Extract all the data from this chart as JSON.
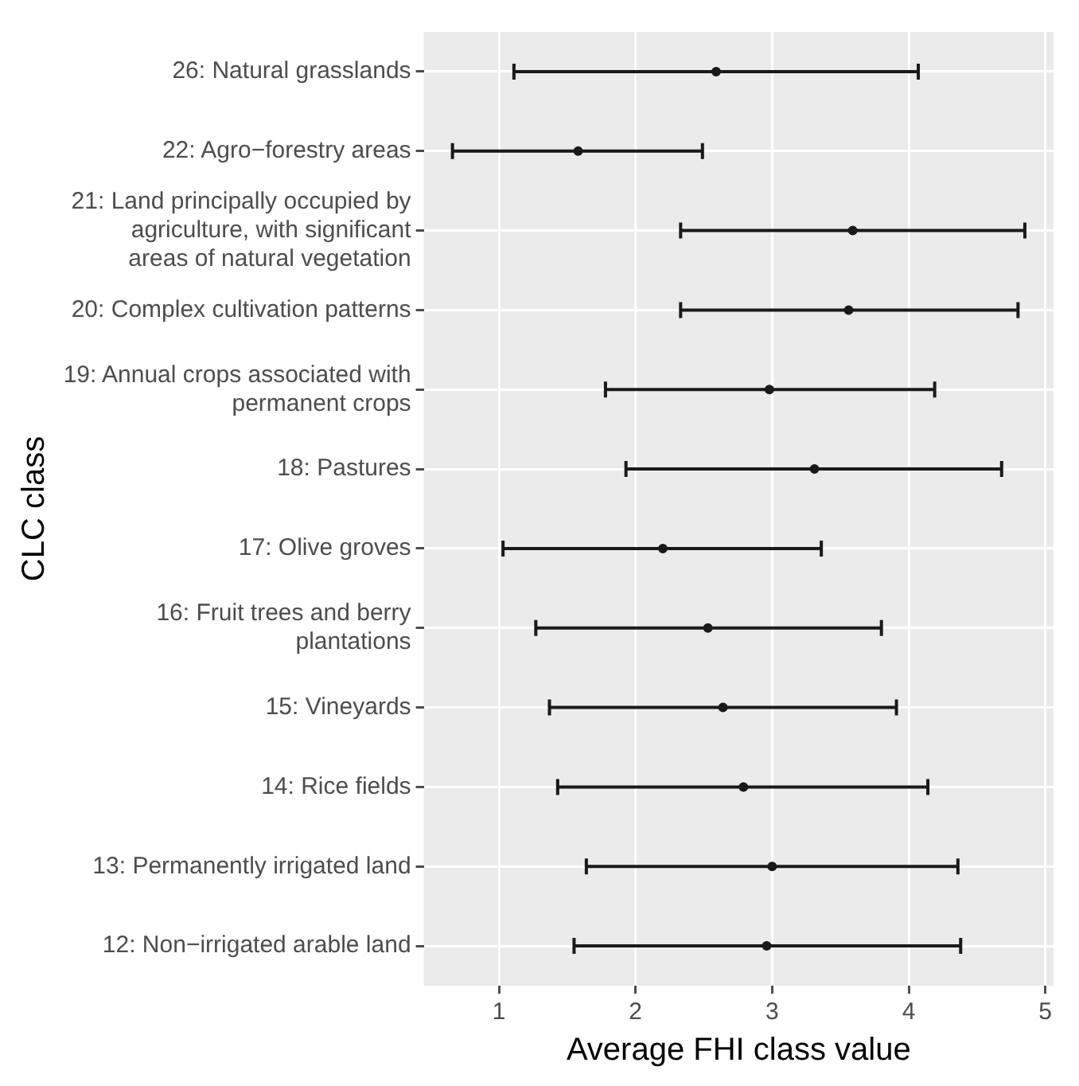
{
  "chart_data": {
    "type": "scatter",
    "orientation": "horizontal",
    "xlabel": "Average FHI class value",
    "ylabel": "CLC class",
    "categories": [
      "26: Natural grasslands",
      "22: Agro−forestry areas",
      "21: Land principally occupied by agriculture, with significant areas of natural vegetation",
      "20: Complex cultivation patterns",
      "19: Annual crops associated with permanent crops",
      "18: Pastures",
      "17: Olive groves",
      "16: Fruit trees and berry plantations",
      "15: Vineyards",
      "14: Rice fields",
      "13: Permanently irrigated land",
      "12: Non−irrigated arable land"
    ],
    "values": [
      2.59,
      1.58,
      3.59,
      3.56,
      2.98,
      3.31,
      2.2,
      2.53,
      2.64,
      2.79,
      3.0,
      2.96
    ],
    "errors": [
      [
        1.11,
        4.07
      ],
      [
        0.66,
        2.49
      ],
      [
        2.33,
        4.85
      ],
      [
        2.33,
        4.8
      ],
      [
        1.78,
        4.19
      ],
      [
        1.93,
        4.68
      ],
      [
        1.03,
        3.36
      ],
      [
        1.27,
        3.8
      ],
      [
        1.37,
        3.91
      ],
      [
        1.43,
        4.14
      ],
      [
        1.64,
        4.36
      ],
      [
        1.55,
        4.38
      ]
    ],
    "color": "#1a1a1a",
    "marker": "circle",
    "xlim": [
      0.45,
      5.06
    ],
    "xticks": [
      1,
      2,
      3,
      4,
      5
    ],
    "grid": true
  }
}
